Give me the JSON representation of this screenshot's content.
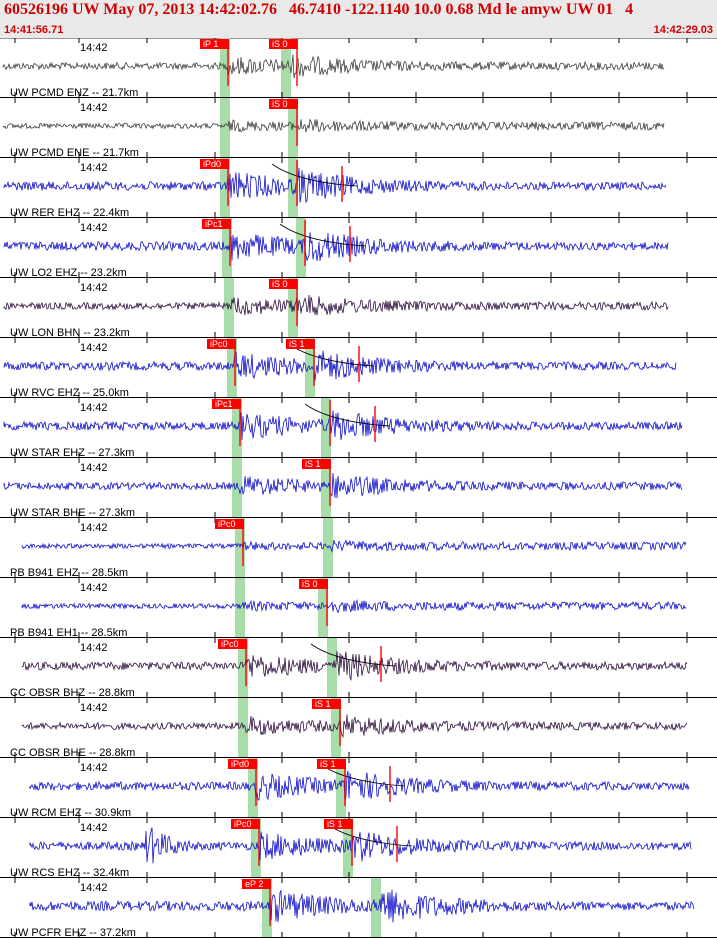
{
  "header": {
    "title": "60526196 UW May 07, 2013 14:42:02.76   46.7410 -122.1140 10.0 0.68 Md le amyw UW 01   4",
    "start_time": "14:41:56.71",
    "end_time": "14:42:29.03"
  },
  "colors": {
    "pick": "#ff0000",
    "window": "#a8dca8",
    "blue": "#1010cc",
    "dark": "#404040",
    "purple": "#301040"
  },
  "traces": [
    {
      "label": "UW PCMD ENZ -- 21.7km",
      "time": "14:42",
      "color": "dark",
      "picks": [
        {
          "text": "iP 1",
          "t": 228
        },
        {
          "text": "iS 0",
          "t": 297
        }
      ],
      "amp": 0.35,
      "onset": 228,
      "s": 290,
      "end": 665,
      "coda": false
    },
    {
      "label": "UW PCMD ENE -- 21.7km",
      "time": "14:42",
      "color": "dark",
      "picks": [
        {
          "text": "iS 0",
          "t": 297
        }
      ],
      "amp": 0.15,
      "onset": 228,
      "s": 297,
      "end": 665,
      "coda": false
    },
    {
      "label": "UW RER EHZ -- 22.4km",
      "time": "14:42",
      "color": "blue",
      "picks": [
        {
          "text": "iPd0",
          "t": 228
        },
        {
          "text": "",
          "t": 297
        }
      ],
      "amp": 0.6,
      "onset": 228,
      "s": 297,
      "end": 667,
      "coda": true
    },
    {
      "label": "UW LO2 EHZ -- 23.2km",
      "time": "14:42",
      "color": "blue",
      "picks": [
        {
          "text": "iPc1",
          "t": 230
        },
        {
          "text": "",
          "t": 305
        }
      ],
      "amp": 0.6,
      "onset": 230,
      "s": 305,
      "end": 669,
      "coda": true
    },
    {
      "label": "UW LON BHN -- 23.2km",
      "time": "14:42",
      "color": "purple",
      "picks": [
        {
          "text": "iS 0",
          "t": 297
        }
      ],
      "amp": 0.35,
      "onset": 232,
      "s": 297,
      "end": 669,
      "coda": false
    },
    {
      "label": "UW RVC EHZ -- 25.0km",
      "time": "14:42",
      "color": "blue",
      "picks": [
        {
          "text": "iPc0",
          "t": 235
        },
        {
          "text": "iS 1",
          "t": 314
        }
      ],
      "amp": 0.55,
      "onset": 235,
      "s": 314,
      "end": 677,
      "coda": true
    },
    {
      "label": "UW STAR EHZ -- 27.3km",
      "time": "14:42",
      "color": "blue",
      "picks": [
        {
          "text": "iPc1",
          "t": 240
        },
        {
          "text": "",
          "t": 330
        }
      ],
      "amp": 0.55,
      "onset": 240,
      "s": 330,
      "end": 683,
      "coda": true
    },
    {
      "label": "UW STAR BHE -- 27.3km",
      "time": "14:42",
      "color": "blue",
      "picks": [
        {
          "text": "iS 1",
          "t": 330
        }
      ],
      "amp": 0.4,
      "onset": 240,
      "s": 330,
      "end": 683,
      "coda": false
    },
    {
      "label": "PB B941 EHZ -- 28.5km",
      "time": "14:42",
      "color": "blue",
      "picks": [
        {
          "text": "iPc0",
          "t": 243
        }
      ],
      "amp": 0.08,
      "onset": 243,
      "s": 332,
      "end": 687,
      "coda": false
    },
    {
      "label": "PB B941 EH1 -- 28.5km",
      "time": "14:42",
      "color": "blue",
      "picks": [
        {
          "text": "iS 0",
          "t": 327
        }
      ],
      "amp": 0.12,
      "onset": 243,
      "s": 327,
      "end": 687,
      "coda": false
    },
    {
      "label": "CC OBSR BHZ -- 28.8km",
      "time": "14:42",
      "color": "purple",
      "picks": [
        {
          "text": "iPc0",
          "t": 246
        }
      ],
      "amp": 0.5,
      "onset": 246,
      "s": 336,
      "end": 688,
      "coda": true
    },
    {
      "label": "CC OBSR BHE -- 28.8km",
      "time": "14:42",
      "color": "purple",
      "picks": [
        {
          "text": "iS 1",
          "t": 340
        }
      ],
      "amp": 0.35,
      "onset": 246,
      "s": 340,
      "end": 688,
      "coda": false
    },
    {
      "label": "UW RCM EHZ -- 30.9km",
      "time": "14:42",
      "color": "blue",
      "picks": [
        {
          "text": "iPd0",
          "t": 256
        },
        {
          "text": "iS 1",
          "t": 345
        }
      ],
      "amp": 0.55,
      "onset": 256,
      "s": 345,
      "end": 690,
      "coda": true
    },
    {
      "label": "UW RCS EHZ -- 32.4km",
      "time": "14:42",
      "color": "blue",
      "picks": [
        {
          "text": "iPc0",
          "t": 259
        },
        {
          "text": "iS 1",
          "t": 352
        }
      ],
      "amp": 0.55,
      "onset": 259,
      "s": 352,
      "end": 692,
      "coda": true
    },
    {
      "label": "UW PCFR EHZ -- 37.2km",
      "time": "14:42",
      "color": "blue",
      "picks": [
        {
          "text": "eP 2",
          "t": 270
        }
      ],
      "amp": 0.7,
      "onset": 270,
      "s": 380,
      "end": 695,
      "coda": false
    }
  ]
}
